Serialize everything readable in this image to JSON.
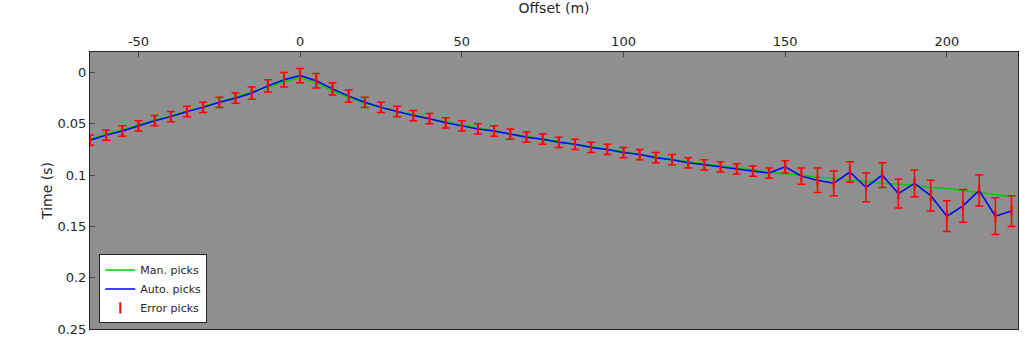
{
  "chart_data": {
    "type": "line",
    "x_label": "Offset (m)",
    "y_label": "Time (s)",
    "x": [
      -65,
      -60,
      -55,
      -50,
      -45,
      -40,
      -35,
      -30,
      -25,
      -20,
      -15,
      -10,
      -5,
      0,
      5,
      10,
      15,
      20,
      25,
      30,
      35,
      40,
      45,
      50,
      55,
      60,
      65,
      70,
      75,
      80,
      85,
      90,
      95,
      100,
      105,
      110,
      115,
      120,
      125,
      130,
      135,
      140,
      145,
      150,
      155,
      160,
      165,
      170,
      175,
      180,
      185,
      190,
      195,
      200,
      205,
      210,
      215,
      220
    ],
    "series": [
      {
        "name": "Man. picks",
        "color": "#00cc00",
        "type": "line",
        "values": [
          0.065,
          0.06,
          0.056,
          0.051,
          0.047,
          0.042,
          0.038,
          0.033,
          0.029,
          0.024,
          0.019,
          0.014,
          0.009,
          0.005,
          0.01,
          0.018,
          0.024,
          0.03,
          0.034,
          0.038,
          0.041,
          0.045,
          0.048,
          0.051,
          0.054,
          0.057,
          0.06,
          0.062,
          0.065,
          0.067,
          0.07,
          0.072,
          0.075,
          0.077,
          0.08,
          0.082,
          0.085,
          0.087,
          0.089,
          0.091,
          0.093,
          0.095,
          0.097,
          0.099,
          0.1,
          0.102,
          0.103,
          0.105,
          0.106,
          0.108,
          0.109,
          0.11,
          0.112,
          0.113,
          0.115,
          0.117,
          0.119,
          0.121
        ]
      },
      {
        "name": "Auto. picks",
        "color": "#0000ff",
        "type": "line",
        "values": [
          0.066,
          0.061,
          0.057,
          0.052,
          0.047,
          0.043,
          0.038,
          0.034,
          0.029,
          0.025,
          0.02,
          0.013,
          0.007,
          0.003,
          0.008,
          0.016,
          0.023,
          0.029,
          0.034,
          0.038,
          0.042,
          0.045,
          0.049,
          0.052,
          0.055,
          0.057,
          0.06,
          0.063,
          0.065,
          0.068,
          0.07,
          0.073,
          0.075,
          0.078,
          0.08,
          0.083,
          0.085,
          0.088,
          0.09,
          0.092,
          0.094,
          0.096,
          0.098,
          0.092,
          0.101,
          0.105,
          0.108,
          0.097,
          0.112,
          0.1,
          0.118,
          0.108,
          0.12,
          0.14,
          0.13,
          0.115,
          0.14,
          0.135
        ]
      },
      {
        "name": "Error picks",
        "color": "#ff0000",
        "type": "error",
        "values": [
          0.066,
          0.061,
          0.057,
          0.052,
          0.047,
          0.043,
          0.038,
          0.034,
          0.029,
          0.025,
          0.02,
          0.013,
          0.007,
          0.003,
          0.008,
          0.016,
          0.023,
          0.029,
          0.034,
          0.038,
          0.042,
          0.045,
          0.049,
          0.052,
          0.055,
          0.057,
          0.06,
          0.063,
          0.065,
          0.068,
          0.07,
          0.073,
          0.075,
          0.078,
          0.08,
          0.083,
          0.085,
          0.088,
          0.09,
          0.092,
          0.094,
          0.096,
          0.098,
          0.092,
          0.101,
          0.105,
          0.108,
          0.097,
          0.112,
          0.1,
          0.118,
          0.108,
          0.12,
          0.14,
          0.13,
          0.115,
          0.14,
          0.135
        ],
        "error": [
          0.005,
          0.005,
          0.005,
          0.005,
          0.005,
          0.005,
          0.005,
          0.005,
          0.005,
          0.005,
          0.006,
          0.006,
          0.007,
          0.007,
          0.007,
          0.006,
          0.006,
          0.005,
          0.005,
          0.005,
          0.005,
          0.005,
          0.005,
          0.005,
          0.005,
          0.005,
          0.005,
          0.005,
          0.005,
          0.005,
          0.005,
          0.005,
          0.005,
          0.005,
          0.005,
          0.005,
          0.005,
          0.005,
          0.005,
          0.005,
          0.005,
          0.005,
          0.005,
          0.006,
          0.008,
          0.012,
          0.012,
          0.01,
          0.014,
          0.012,
          0.014,
          0.013,
          0.015,
          0.015,
          0.016,
          0.015,
          0.018,
          0.015
        ]
      }
    ],
    "xlim": [
      -65,
      222
    ],
    "ylim": [
      0.25,
      -0.02
    ],
    "xticks": [
      -50,
      0,
      50,
      100,
      150,
      200
    ],
    "yticks": [
      0,
      0.05,
      0.1,
      0.15,
      0.2,
      0.25
    ],
    "legend": "lower left",
    "grid": false
  }
}
